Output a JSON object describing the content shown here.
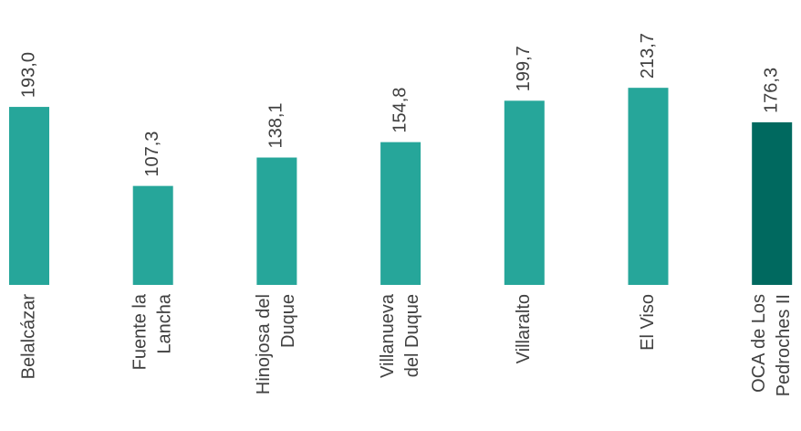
{
  "chart_data": {
    "type": "bar",
    "categories": [
      [
        "Belalcázar"
      ],
      [
        "Fuente la",
        "Lancha"
      ],
      [
        "Hinojosa del",
        "Duque"
      ],
      [
        "Villanueva",
        "del Duque"
      ],
      [
        "Villaralto"
      ],
      [
        "El Viso"
      ],
      [
        "OCA de Los",
        "Pedroches II"
      ]
    ],
    "values": [
      193.0,
      107.3,
      138.1,
      154.8,
      199.7,
      213.7,
      176.3
    ],
    "value_labels": [
      "193,0",
      "107,3",
      "138,1",
      "154,8",
      "199,7",
      "213,7",
      "176,3"
    ],
    "colors": [
      "#26a69a",
      "#26a69a",
      "#26a69a",
      "#26a69a",
      "#26a69a",
      "#26a69a",
      "#00695f"
    ]
  }
}
